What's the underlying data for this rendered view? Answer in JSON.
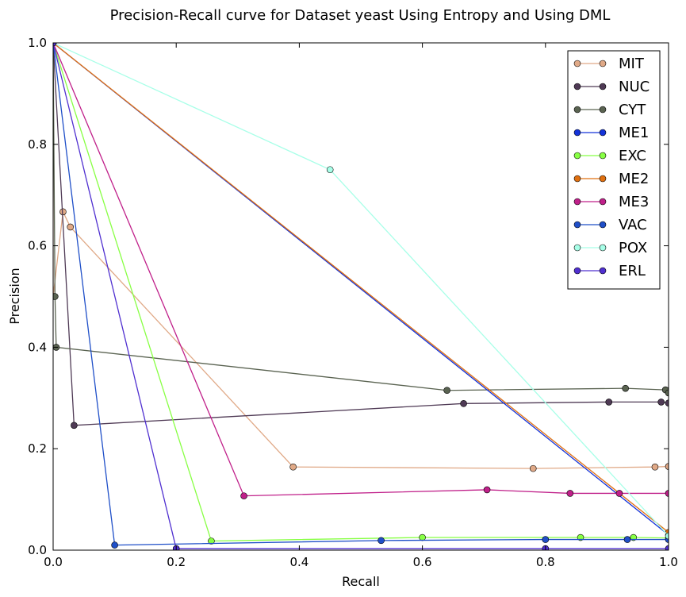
{
  "chart_data": {
    "type": "line",
    "title": "Precision-Recall curve for Dataset yeast Using Entropy and Using DML",
    "xlabel": "Recall",
    "ylabel": "Precision",
    "xlim": [
      0,
      1
    ],
    "ylim": [
      0,
      1
    ],
    "xticks": [
      "0.0",
      "0.2",
      "0.4",
      "0.6",
      "0.8",
      "1.0"
    ],
    "yticks": [
      "0.0",
      "0.2",
      "0.4",
      "0.6",
      "0.8",
      "1.0"
    ],
    "grid": false,
    "legend_position": "top-right",
    "series": [
      {
        "name": "MIT",
        "color": "#e0a987",
        "x": [
          0.0,
          0.0,
          0.016,
          0.028,
          0.39,
          0.78,
          0.978,
          1.0
        ],
        "y": [
          1.0,
          0.5,
          0.667,
          0.637,
          0.164,
          0.161,
          0.164,
          0.165
        ]
      },
      {
        "name": "NUC",
        "color": "#4f3a55",
        "x": [
          0.0,
          0.034,
          0.667,
          0.903,
          0.988,
          1.0
        ],
        "y": [
          1.0,
          0.246,
          0.289,
          0.292,
          0.292,
          0.29
        ]
      },
      {
        "name": "CYT",
        "color": "#5a6351",
        "x": [
          0.0,
          0.003,
          0.005,
          0.64,
          0.93,
          0.995,
          1.0
        ],
        "y": [
          1.0,
          0.5,
          0.4,
          0.315,
          0.319,
          0.316,
          0.31
        ]
      },
      {
        "name": "ME1",
        "color": "#1433d9",
        "x": [
          0.0,
          1.0
        ],
        "y": [
          1.0,
          0.03
        ]
      },
      {
        "name": "EXC",
        "color": "#88ff44",
        "x": [
          0.0,
          0.257,
          0.6,
          0.857,
          0.943,
          1.0
        ],
        "y": [
          1.0,
          0.018,
          0.025,
          0.025,
          0.025,
          0.024
        ]
      },
      {
        "name": "ME2",
        "color": "#e07010",
        "x": [
          0.0,
          1.0
        ],
        "y": [
          1.0,
          0.035
        ]
      },
      {
        "name": "ME3",
        "color": "#c0208a",
        "x": [
          0.0,
          0.31,
          0.705,
          0.84,
          0.92,
          1.0
        ],
        "y": [
          1.0,
          0.107,
          0.119,
          0.112,
          0.112,
          0.112
        ]
      },
      {
        "name": "VAC",
        "color": "#1f4fc8",
        "x": [
          0.0,
          0.1,
          0.533,
          0.8,
          0.933,
          1.0
        ],
        "y": [
          1.0,
          0.01,
          0.019,
          0.021,
          0.021,
          0.021
        ]
      },
      {
        "name": "POX",
        "color": "#a8ffe8",
        "x": [
          0.0,
          0.45,
          1.0
        ],
        "y": [
          1.0,
          0.75,
          0.028
        ]
      },
      {
        "name": "ERL",
        "color": "#5030d0",
        "x": [
          0.0,
          0.2,
          0.8,
          1.0
        ],
        "y": [
          1.0,
          0.003,
          0.003,
          0.003
        ]
      }
    ]
  }
}
